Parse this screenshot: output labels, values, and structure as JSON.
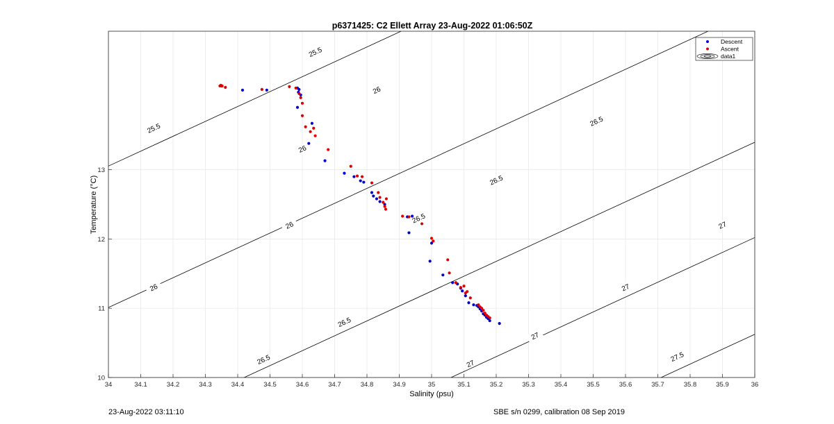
{
  "chart_data": {
    "type": "scatter",
    "title": "p6371425: C2 Ellett Array 23-Aug-2022 01:06:50Z",
    "xlabel": "Salinity (psu)",
    "ylabel": "Temperature (°C)",
    "xlim": [
      34,
      36
    ],
    "ylim": [
      10,
      15
    ],
    "xticks": [
      "34",
      "34.1",
      "34.2",
      "34.3",
      "34.4",
      "34.5",
      "34.6",
      "34.7",
      "34.8",
      "34.9",
      "35",
      "35.1",
      "35.2",
      "35.3",
      "35.4",
      "35.5",
      "35.6",
      "35.7",
      "35.8",
      "35.9",
      "36"
    ],
    "yticks": [
      "10",
      "11",
      "12",
      "13"
    ],
    "grid": true,
    "legend_position": "top-right",
    "legend": [
      "Descent",
      "Ascent",
      "data1"
    ],
    "colors": {
      "descent": "#0000cc",
      "ascent": "#dd0000",
      "contour": "#000000",
      "grid": "#e6e6e6"
    },
    "series": [
      {
        "name": "Descent",
        "x": [
          34.35,
          34.415,
          34.49,
          34.585,
          34.588,
          34.59,
          34.595,
          34.585,
          34.63,
          34.62,
          34.67,
          34.73,
          34.76,
          34.78,
          34.79,
          34.815,
          34.82,
          34.83,
          34.84,
          34.855,
          34.925,
          34.94,
          34.93,
          35.0,
          34.995,
          35.035,
          35.065,
          35.08,
          35.09,
          35.095,
          35.105,
          35.115,
          35.13,
          35.14,
          35.145,
          35.15,
          35.155,
          35.16,
          35.165,
          35.17,
          35.175,
          35.18,
          35.21
        ],
        "y": [
          14.21,
          14.15,
          14.15,
          14.18,
          14.12,
          14.16,
          14.08,
          13.9,
          13.67,
          13.38,
          13.13,
          12.95,
          12.9,
          12.84,
          12.82,
          12.67,
          12.62,
          12.58,
          12.54,
          12.5,
          12.32,
          12.33,
          12.09,
          11.94,
          11.68,
          11.48,
          11.37,
          11.35,
          11.29,
          11.25,
          11.18,
          11.08,
          11.05,
          11.04,
          11.02,
          10.99,
          10.96,
          10.92,
          10.9,
          10.87,
          10.85,
          10.82,
          10.78
        ]
      },
      {
        "name": "Ascent",
        "x": [
          34.345,
          34.348,
          34.352,
          34.362,
          34.475,
          34.56,
          34.58,
          34.59,
          34.595,
          34.6,
          34.6,
          34.61,
          34.625,
          34.635,
          34.64,
          34.68,
          34.75,
          34.77,
          34.785,
          34.815,
          34.835,
          34.84,
          34.85,
          34.855,
          34.858,
          34.86,
          34.91,
          34.93,
          34.97,
          35.0,
          35.005,
          35.05,
          35.055,
          35.075,
          35.09,
          35.1,
          35.105,
          35.11,
          35.12,
          35.145,
          35.15,
          35.155,
          35.16,
          35.165,
          35.17,
          35.175,
          35.18
        ],
        "y": [
          14.21,
          14.22,
          14.21,
          14.19,
          14.16,
          14.2,
          14.18,
          14.1,
          14.04,
          13.96,
          13.78,
          13.62,
          13.55,
          13.6,
          13.49,
          13.29,
          13.05,
          12.91,
          12.9,
          12.81,
          12.67,
          12.6,
          12.53,
          12.47,
          12.43,
          12.58,
          12.33,
          12.32,
          12.22,
          12.01,
          11.97,
          11.7,
          11.51,
          11.37,
          11.3,
          11.32,
          11.22,
          11.24,
          11.15,
          11.05,
          11.02,
          11.0,
          10.97,
          10.93,
          10.9,
          10.88,
          10.86
        ]
      }
    ],
    "contours": [
      {
        "level": "25.5",
        "labels": [
          "25.5",
          "25.5"
        ]
      },
      {
        "level": "26",
        "labels": [
          "26",
          "26",
          "26",
          "26"
        ]
      },
      {
        "level": "26.5",
        "labels": [
          "26.5",
          "26.5",
          "26.5",
          "26.5",
          "26.5"
        ]
      },
      {
        "level": "27",
        "labels": [
          "27",
          "27",
          "27",
          "27"
        ]
      },
      {
        "level": "27.5",
        "labels": [
          "27.5"
        ]
      }
    ]
  },
  "footer": {
    "left": "23-Aug-2022 03:11:10",
    "right": "SBE s/n 0299, calibration 08 Sep 2019"
  }
}
